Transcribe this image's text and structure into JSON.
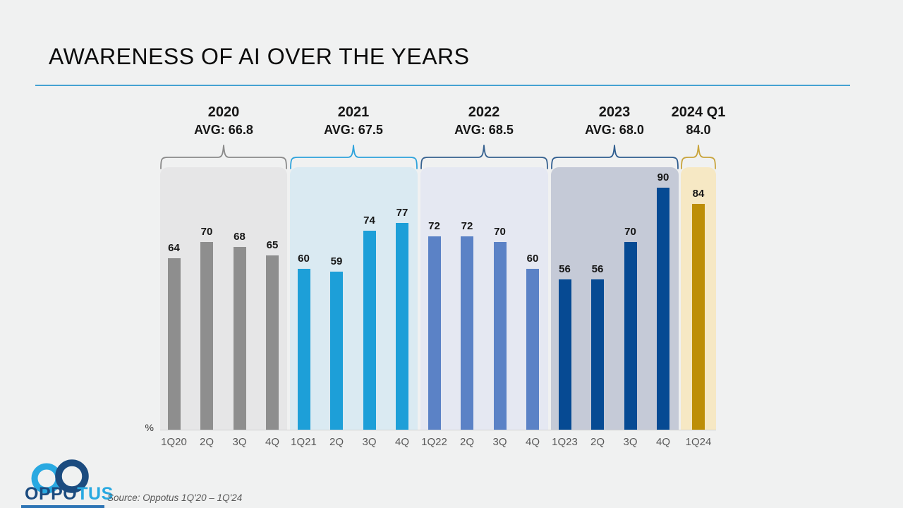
{
  "title": "AWARENESS OF AI OVER THE YEARS",
  "colors": {
    "background": "#f0f1f1",
    "title_text": "#0b0b0b",
    "divider_blue": "#45a2d2",
    "axis_text": "#595959",
    "baseline": "#d2d2d2",
    "logo_dark_blue": "#1b4b7f",
    "logo_light_blue": "#29a9e1",
    "bottom_bar_blue": "#2d74b5"
  },
  "axis": {
    "unit_label": "%"
  },
  "groups": [
    {
      "year": "2020",
      "avg_line": "AVG: 66.8",
      "bar_color": "#8e8e8e",
      "panel_color": "#e6e6e7",
      "brace_color": "#8a8a8a",
      "quarters": [
        {
          "label": "1Q20",
          "value": 64
        },
        {
          "label": "2Q",
          "value": 70
        },
        {
          "label": "3Q",
          "value": 68
        },
        {
          "label": "4Q",
          "value": 65
        }
      ]
    },
    {
      "year": "2021",
      "avg_line": "AVG: 67.5",
      "bar_color": "#1d9fd8",
      "panel_color": "#daeaf2",
      "brace_color": "#2ea3dc",
      "quarters": [
        {
          "label": "1Q21",
          "value": 60
        },
        {
          "label": "2Q",
          "value": 59
        },
        {
          "label": "3Q",
          "value": 74
        },
        {
          "label": "4Q",
          "value": 77
        }
      ]
    },
    {
      "year": "2022",
      "avg_line": "AVG: 68.5",
      "bar_color": "#5b82c6",
      "panel_color": "#e5e8f2",
      "brace_color": "#36618f",
      "quarters": [
        {
          "label": "1Q22",
          "value": 72
        },
        {
          "label": "2Q",
          "value": 72
        },
        {
          "label": "3Q",
          "value": 70
        },
        {
          "label": "4Q",
          "value": 60
        }
      ]
    },
    {
      "year": "2023",
      "avg_line": "AVG: 68.0",
      "bar_color": "#064a93",
      "panel_color": "#c5cad7",
      "brace_color": "#2f5d8f",
      "quarters": [
        {
          "label": "1Q23",
          "value": 56
        },
        {
          "label": "2Q",
          "value": 56
        },
        {
          "label": "3Q",
          "value": 70
        },
        {
          "label": "4Q",
          "value": 90
        }
      ]
    },
    {
      "year": "2024 Q1",
      "avg_line": "84.0",
      "bar_color": "#bd8e07",
      "panel_color": "#f6e8c4",
      "brace_color": "#c8a43c",
      "quarters": [
        {
          "label": "1Q24",
          "value": 84
        }
      ]
    }
  ],
  "footer": {
    "logo_text_primary": "OPPO",
    "logo_text_secondary": "TUS",
    "source": "Source: Oppotus 1Q'20 – 1Q'24"
  },
  "chart_data": {
    "type": "bar",
    "title": "AWARENESS OF AI OVER THE YEARS",
    "xlabel": "",
    "ylabel": "%",
    "ylim": [
      0,
      100
    ],
    "grid": false,
    "legend": "none",
    "categories": [
      "1Q20",
      "2Q",
      "3Q",
      "4Q",
      "1Q21",
      "2Q",
      "3Q",
      "4Q",
      "1Q22",
      "2Q",
      "3Q",
      "4Q",
      "1Q23",
      "2Q",
      "3Q",
      "4Q",
      "1Q24"
    ],
    "values": [
      64,
      70,
      68,
      65,
      60,
      59,
      74,
      77,
      72,
      72,
      70,
      60,
      56,
      56,
      70,
      90,
      84
    ],
    "group_summaries": [
      {
        "year": "2020",
        "avg": 66.8,
        "values": [
          64,
          70,
          68,
          65
        ]
      },
      {
        "year": "2021",
        "avg": 67.5,
        "values": [
          60,
          59,
          74,
          77
        ]
      },
      {
        "year": "2022",
        "avg": 68.5,
        "values": [
          72,
          72,
          70,
          60
        ]
      },
      {
        "year": "2023",
        "avg": 68.0,
        "values": [
          56,
          56,
          70,
          90
        ]
      },
      {
        "year": "2024 Q1",
        "avg": 84.0,
        "values": [
          84
        ]
      }
    ],
    "annotations": [
      "Source: Oppotus 1Q'20 – 1Q'24"
    ]
  }
}
